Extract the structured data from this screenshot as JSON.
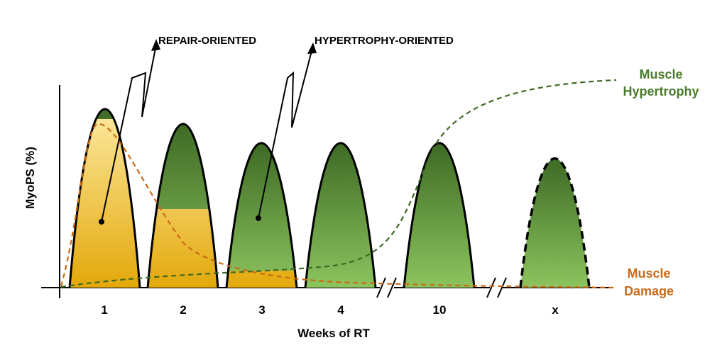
{
  "axes": {
    "y_label": "MyoPS (%)",
    "x_label": "Weeks of RT",
    "ticks": [
      "1",
      "2",
      "3",
      "4",
      "10",
      "x"
    ]
  },
  "annotations": {
    "repair": "REPAIR-ORIENTED",
    "hypertrophy": "HYPERTROPHY-ORIENTED"
  },
  "legend": {
    "hypertrophy_line1": "Muscle",
    "hypertrophy_line2": "Hypertrophy",
    "damage_line1": "Muscle",
    "damage_line2": "Damage"
  },
  "colors": {
    "green_dark": "#3e6a25",
    "green_light": "#8cc45e",
    "yellow_light": "#fde9a0",
    "yellow_dark": "#e3a80a",
    "damage_line": "#cc6a14",
    "hypertrophy_line": "#3e6a25",
    "hypertrophy_text": "#4a7a2b",
    "damage_text": "#c86a1a"
  },
  "peaks": [
    {
      "week": "1",
      "relative_height": 1.0,
      "repair_fraction": 0.9
    },
    {
      "week": "2",
      "relative_height": 0.89,
      "repair_fraction": 0.46
    },
    {
      "week": "3",
      "relative_height": 0.78,
      "repair_fraction": 0.1
    },
    {
      "week": "4",
      "relative_height": 0.78,
      "repair_fraction": 0.0
    },
    {
      "week": "10",
      "relative_height": 0.78,
      "repair_fraction": 0.0
    },
    {
      "week": "x",
      "relative_height": 0.69,
      "repair_fraction": 0.0,
      "dashed": true
    }
  ]
}
